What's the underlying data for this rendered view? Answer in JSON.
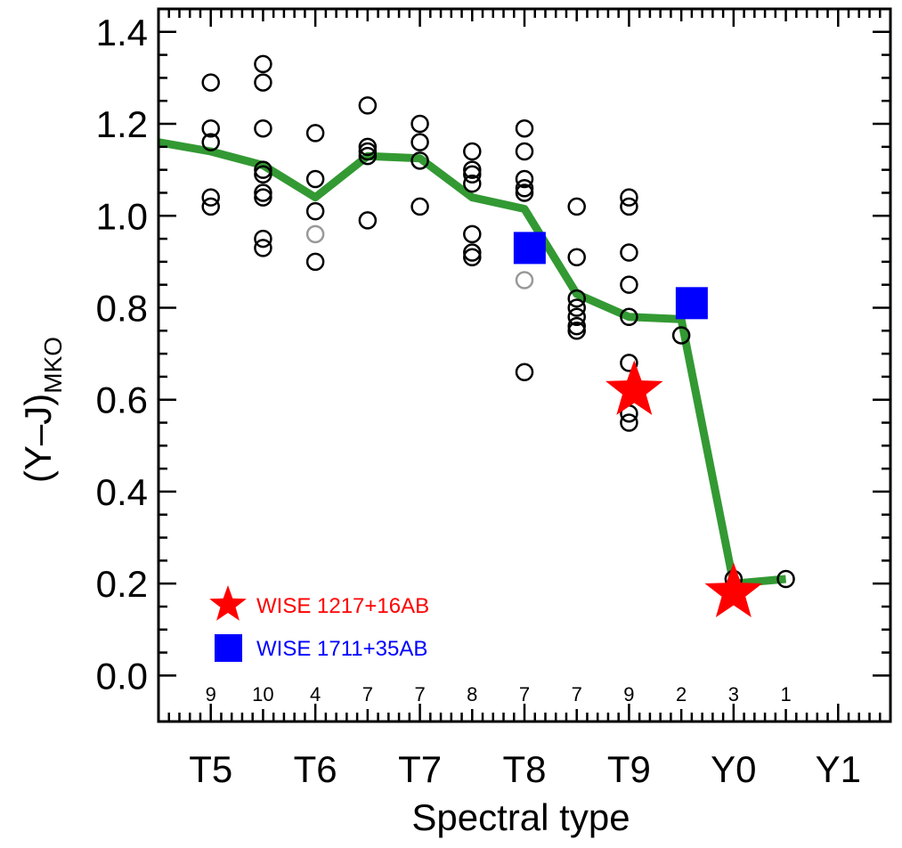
{
  "chart_data": {
    "type": "scatter",
    "xlabel": "Spectral type",
    "ylabel_main": "(Y–J)",
    "ylabel_sub": "MKO",
    "xlim": [
      4.5,
      11.5
    ],
    "ylim": [
      -0.1,
      1.45
    ],
    "x_ticks": [
      {
        "value": 5,
        "label": "T5"
      },
      {
        "value": 6,
        "label": "T6"
      },
      {
        "value": 7,
        "label": "T7"
      },
      {
        "value": 8,
        "label": "T8"
      },
      {
        "value": 9,
        "label": "T9"
      },
      {
        "value": 10,
        "label": "Y0"
      },
      {
        "value": 11,
        "label": "Y1"
      }
    ],
    "y_ticks": [
      {
        "value": 0.0,
        "label": "0.0"
      },
      {
        "value": 0.2,
        "label": "0.2"
      },
      {
        "value": 0.4,
        "label": "0.4"
      },
      {
        "value": 0.6,
        "label": "0.6"
      },
      {
        "value": 0.8,
        "label": "0.8"
      },
      {
        "value": 1.0,
        "label": "1.0"
      },
      {
        "value": 1.2,
        "label": "1.2"
      },
      {
        "value": 1.4,
        "label": "1.4"
      }
    ],
    "counts": [
      {
        "x": 5.0,
        "label": "9"
      },
      {
        "x": 5.5,
        "label": "10"
      },
      {
        "x": 6.0,
        "label": "4"
      },
      {
        "x": 6.5,
        "label": "7"
      },
      {
        "x": 7.0,
        "label": "7"
      },
      {
        "x": 7.5,
        "label": "8"
      },
      {
        "x": 8.0,
        "label": "7"
      },
      {
        "x": 8.5,
        "label": "7"
      },
      {
        "x": 9.0,
        "label": "9"
      },
      {
        "x": 9.5,
        "label": "2"
      },
      {
        "x": 10.0,
        "label": "3"
      },
      {
        "x": 10.5,
        "label": "1"
      }
    ],
    "field_objects": [
      [
        5.0,
        1.29
      ],
      [
        5.0,
        1.19
      ],
      [
        5.0,
        1.16
      ],
      [
        5.0,
        1.04
      ],
      [
        5.0,
        1.02
      ],
      [
        5.5,
        1.33
      ],
      [
        5.5,
        1.29
      ],
      [
        5.5,
        1.19
      ],
      [
        5.5,
        1.1
      ],
      [
        5.5,
        1.09
      ],
      [
        5.5,
        1.05
      ],
      [
        5.5,
        1.04
      ],
      [
        5.5,
        0.95
      ],
      [
        5.5,
        0.93
      ],
      [
        6.0,
        1.18
      ],
      [
        6.0,
        1.08
      ],
      [
        6.0,
        1.01
      ],
      [
        6.0,
        0.9
      ],
      [
        6.5,
        1.24
      ],
      [
        6.5,
        1.15
      ],
      [
        6.5,
        1.14
      ],
      [
        6.5,
        1.13
      ],
      [
        6.5,
        0.99
      ],
      [
        7.0,
        1.2
      ],
      [
        7.0,
        1.16
      ],
      [
        7.0,
        1.12
      ],
      [
        7.0,
        1.02
      ],
      [
        7.5,
        1.14
      ],
      [
        7.5,
        1.1
      ],
      [
        7.5,
        1.09
      ],
      [
        7.5,
        1.07
      ],
      [
        7.5,
        0.96
      ],
      [
        7.5,
        0.92
      ],
      [
        7.5,
        0.91
      ],
      [
        8.0,
        1.19
      ],
      [
        8.0,
        1.14
      ],
      [
        8.0,
        1.08
      ],
      [
        8.0,
        1.06
      ],
      [
        8.0,
        1.05
      ],
      [
        8.0,
        0.66
      ],
      [
        8.5,
        1.02
      ],
      [
        8.5,
        0.91
      ],
      [
        8.5,
        0.82
      ],
      [
        8.5,
        0.8
      ],
      [
        8.5,
        0.78
      ],
      [
        8.5,
        0.76
      ],
      [
        8.5,
        0.75
      ],
      [
        9.0,
        1.04
      ],
      [
        9.0,
        1.02
      ],
      [
        9.0,
        0.92
      ],
      [
        9.0,
        0.85
      ],
      [
        9.0,
        0.78
      ],
      [
        9.0,
        0.68
      ],
      [
        9.0,
        0.57
      ],
      [
        9.0,
        0.55
      ],
      [
        9.5,
        0.74
      ],
      [
        10.0,
        0.21
      ],
      [
        10.0,
        0.19
      ],
      [
        10.5,
        0.21
      ]
    ],
    "gray_objects": [
      [
        6.0,
        0.96
      ],
      [
        8.0,
        0.86
      ]
    ],
    "mean_line": [
      [
        4.5,
        1.16
      ],
      [
        5.0,
        1.14
      ],
      [
        5.5,
        1.11
      ],
      [
        6.0,
        1.04
      ],
      [
        6.5,
        1.13
      ],
      [
        7.0,
        1.125
      ],
      [
        7.5,
        1.04
      ],
      [
        8.0,
        1.015
      ],
      [
        8.5,
        0.83
      ],
      [
        9.0,
        0.78
      ],
      [
        9.5,
        0.775
      ],
      [
        10.0,
        0.2
      ],
      [
        10.5,
        0.21
      ]
    ],
    "wise1217": {
      "name": "WISE 1217+16AB",
      "points": [
        [
          9.05,
          0.62
        ],
        [
          10.0,
          0.18
        ]
      ],
      "color": "#ff0000"
    },
    "wise1711": {
      "name": "WISE 1711+35AB",
      "points": [
        [
          8.05,
          0.93
        ],
        [
          9.6,
          0.81
        ]
      ],
      "color": "#0000ff"
    },
    "line_color": "#339933",
    "legend_position": "bottom-left",
    "grid": false
  }
}
